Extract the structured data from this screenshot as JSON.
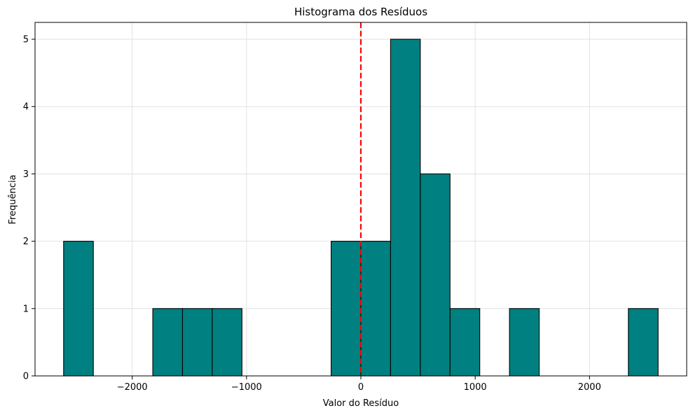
{
  "chart_data": {
    "type": "bar",
    "title": "Histograma dos Resíduos",
    "xlabel": "Valor do Resíduo",
    "ylabel": "Frequência",
    "xlim": [
      -2850,
      2850
    ],
    "ylim": [
      0,
      5.25
    ],
    "xticks": [
      -2000,
      -1000,
      0,
      1000,
      2000
    ],
    "xtick_labels": [
      "−2000",
      "−1000",
      "0",
      "1000",
      "2000"
    ],
    "yticks": [
      0,
      1,
      2,
      3,
      4,
      5
    ],
    "ytick_labels": [
      "0",
      "1",
      "2",
      "3",
      "4",
      "5"
    ],
    "bin_edges": [
      -2600,
      -2340,
      -2080,
      -1820,
      -1560,
      -1300,
      -1040,
      -780,
      -520,
      -260,
      0,
      260,
      520,
      780,
      1040,
      1300,
      1560,
      1820,
      2080,
      2340,
      2600
    ],
    "counts": [
      2,
      0,
      0,
      1,
      1,
      1,
      0,
      0,
      0,
      2,
      2,
      5,
      3,
      1,
      0,
      1,
      0,
      0,
      0,
      1
    ],
    "reference_line": {
      "x": 0,
      "style": "dashed",
      "color": "#ff0000"
    },
    "bar_color": "#008080",
    "edge_color": "#000000",
    "grid": true,
    "legend": "none"
  }
}
